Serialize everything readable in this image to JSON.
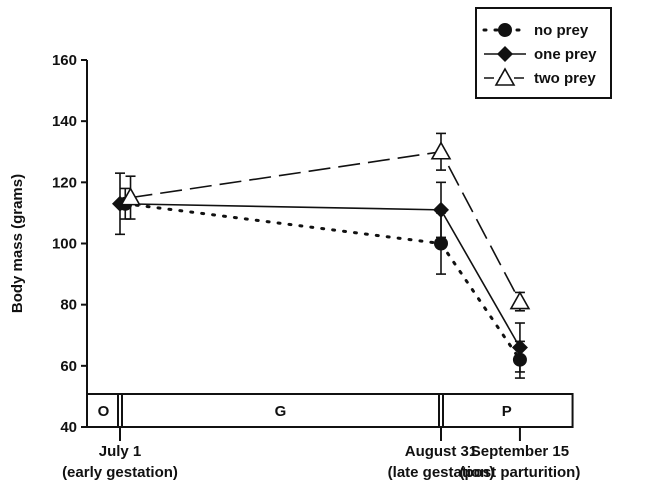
{
  "chart_data": {
    "type": "line",
    "title": "",
    "ylabel": "Body mass (grams)",
    "xlabel": "",
    "ylim": [
      40,
      160
    ],
    "yticks": [
      40,
      60,
      80,
      100,
      120,
      140,
      160
    ],
    "x_categories": [
      {
        "date": "July 1",
        "note": "(early gestation)"
      },
      {
        "date": "August 31",
        "note": "(late gestation)"
      },
      {
        "date": "September 15",
        "note": "(post parturition)"
      }
    ],
    "x_days": [
      0,
      61,
      76
    ],
    "phases": [
      {
        "label": "O",
        "start": -6,
        "end": 0
      },
      {
        "label": "G",
        "start": 0,
        "end": 61
      },
      {
        "label": "P",
        "start": 61,
        "end": 86
      }
    ],
    "series": [
      {
        "name": "no prey",
        "marker": "circle",
        "line": "dotted",
        "x_offset": [
          1,
          0,
          0
        ],
        "values": [
          113,
          100,
          62
        ],
        "error": [
          5,
          10,
          6
        ]
      },
      {
        "name": "one prey",
        "marker": "diamond",
        "line": "solid",
        "x_offset": [
          0,
          0,
          0
        ],
        "values": [
          113,
          111,
          66
        ],
        "error": [
          10,
          9,
          8
        ]
      },
      {
        "name": "two prey",
        "marker": "triangle-open",
        "line": "dashed",
        "x_offset": [
          2,
          0,
          0
        ],
        "values": [
          115,
          130,
          81
        ],
        "error": [
          7,
          6,
          3
        ]
      }
    ],
    "legend_position": "top-right",
    "grid": false
  }
}
